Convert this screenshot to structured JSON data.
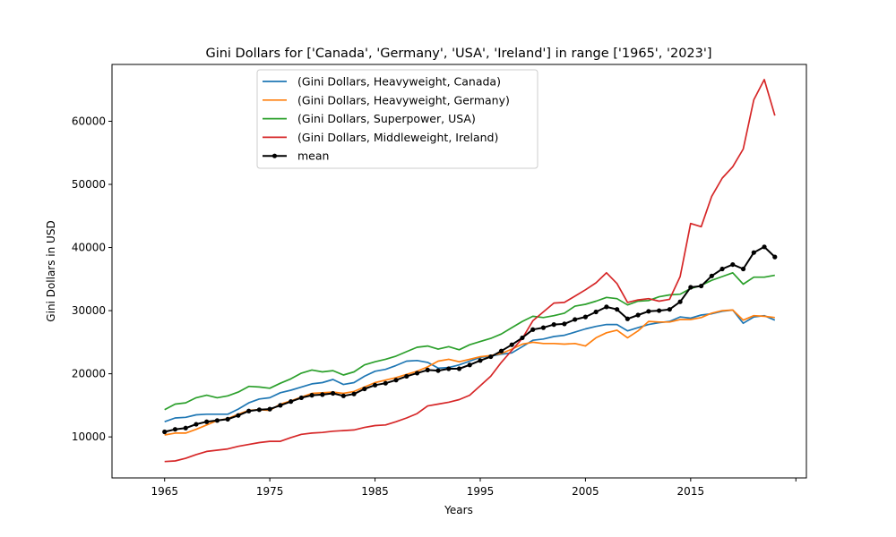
{
  "chart_data": {
    "type": "line",
    "title": "Gini Dollars for ['Canada', 'Germany', 'USA', 'Ireland'] in range ['1965', '2023']",
    "xlabel": "Years",
    "ylabel": "Gini Dollars in USD",
    "xlim": [
      1960,
      2026
    ],
    "ylim": [
      3500,
      69000
    ],
    "xticks": [
      1965,
      1975,
      1985,
      1995,
      2005,
      2015,
      2025
    ],
    "xtick_labels": [
      "1965",
      "1975",
      "1985",
      "1995",
      "2005",
      "2015",
      ""
    ],
    "yticks": [
      10000,
      20000,
      30000,
      40000,
      50000,
      60000
    ],
    "ytick_labels": [
      "10000",
      "20000",
      "30000",
      "40000",
      "50000",
      "60000"
    ],
    "grid": false,
    "legend_position": "top-left",
    "x": [
      1965,
      1966,
      1967,
      1968,
      1969,
      1970,
      1971,
      1972,
      1973,
      1974,
      1975,
      1976,
      1977,
      1978,
      1979,
      1980,
      1981,
      1982,
      1983,
      1984,
      1985,
      1986,
      1987,
      1988,
      1989,
      1990,
      1991,
      1992,
      1993,
      1994,
      1995,
      1996,
      1997,
      1998,
      1999,
      2000,
      2001,
      2002,
      2003,
      2004,
      2005,
      2006,
      2007,
      2008,
      2009,
      2010,
      2011,
      2012,
      2013,
      2014,
      2015,
      2016,
      2017,
      2018,
      2019,
      2020,
      2021,
      2022,
      2023
    ],
    "series": [
      {
        "name": "(Gini Dollars, Heavyweight, Canada)",
        "color": "#1f77b4",
        "marker": false,
        "values": [
          12400,
          13000,
          13100,
          13500,
          13600,
          13600,
          13600,
          14400,
          15400,
          16000,
          16200,
          17000,
          17400,
          17900,
          18400,
          18600,
          19100,
          18300,
          18600,
          19600,
          20400,
          20700,
          21300,
          22000,
          22100,
          21800,
          20900,
          21000,
          21400,
          22000,
          22600,
          22800,
          23100,
          23300,
          24300,
          25300,
          25500,
          25900,
          26100,
          26600,
          27100,
          27500,
          27800,
          27800,
          26800,
          27300,
          27800,
          28100,
          28300,
          29000,
          28800,
          29300,
          29500,
          29900,
          30100,
          28000,
          29000,
          29200,
          28500
        ]
      },
      {
        "name": "(Gini Dollars, Heavyweight, Germany)",
        "color": "#ff7f0e",
        "marker": false,
        "values": [
          10300,
          10600,
          10600,
          11200,
          11900,
          12600,
          12900,
          13600,
          14200,
          14300,
          14200,
          15200,
          15700,
          16300,
          16900,
          17000,
          17100,
          16900,
          17200,
          17900,
          18600,
          19000,
          19400,
          19900,
          20400,
          21100,
          22000,
          22300,
          21900,
          22300,
          22700,
          22900,
          23200,
          23900,
          24700,
          25000,
          24800,
          24800,
          24700,
          24800,
          24400,
          25700,
          26500,
          26900,
          25700,
          26800,
          28300,
          28200,
          28200,
          28600,
          28600,
          28900,
          29600,
          30000,
          30100,
          28500,
          29200,
          29100,
          28900
        ]
      },
      {
        "name": "(Gini Dollars, Superpower, USA)",
        "color": "#2ca02c",
        "marker": false,
        "values": [
          14300,
          15200,
          15400,
          16200,
          16600,
          16200,
          16500,
          17100,
          18000,
          17900,
          17700,
          18500,
          19200,
          20100,
          20600,
          20300,
          20500,
          19800,
          20300,
          21400,
          21900,
          22300,
          22800,
          23500,
          24200,
          24400,
          23900,
          24300,
          23800,
          24600,
          25100,
          25600,
          26300,
          27300,
          28300,
          29100,
          28900,
          29200,
          29600,
          30700,
          31000,
          31500,
          32100,
          31900,
          30900,
          31500,
          31600,
          32200,
          32500,
          32600,
          33500,
          34000,
          34800,
          35400,
          36000,
          34200,
          35300,
          35300,
          35600
        ]
      },
      {
        "name": "(Gini Dollars, Middleweight, Ireland)",
        "color": "#d62728",
        "marker": false,
        "values": [
          6100,
          6200,
          6600,
          7200,
          7700,
          7900,
          8100,
          8500,
          8800,
          9100,
          9300,
          9300,
          9900,
          10400,
          10600,
          10700,
          10900,
          11000,
          11100,
          11500,
          11800,
          11900,
          12400,
          13000,
          13700,
          14900,
          15200,
          15500,
          15900,
          16600,
          18100,
          19600,
          21800,
          23700,
          25600,
          28400,
          29800,
          31200,
          31300,
          32300,
          33300,
          34400,
          36000,
          34300,
          31300,
          31700,
          31900,
          31500,
          31800,
          35400,
          43800,
          43300,
          48100,
          51000,
          52800,
          55600,
          63400,
          66600,
          60900
        ]
      },
      {
        "name": "mean",
        "color": "#000000",
        "marker": true,
        "values": [
          10800,
          11200,
          11400,
          12000,
          12400,
          12600,
          12800,
          13400,
          14100,
          14300,
          14400,
          15000,
          15600,
          16200,
          16600,
          16700,
          16900,
          16500,
          16800,
          17600,
          18200,
          18500,
          19000,
          19600,
          20100,
          20600,
          20500,
          20800,
          20800,
          21400,
          22100,
          22700,
          23600,
          24600,
          25700,
          27000,
          27300,
          27800,
          27900,
          28600,
          29000,
          29800,
          30600,
          30200,
          28700,
          29300,
          29900,
          30000,
          30200,
          31400,
          33700,
          33900,
          35500,
          36600,
          37300,
          36600,
          39200,
          40100,
          38500
        ]
      }
    ]
  }
}
